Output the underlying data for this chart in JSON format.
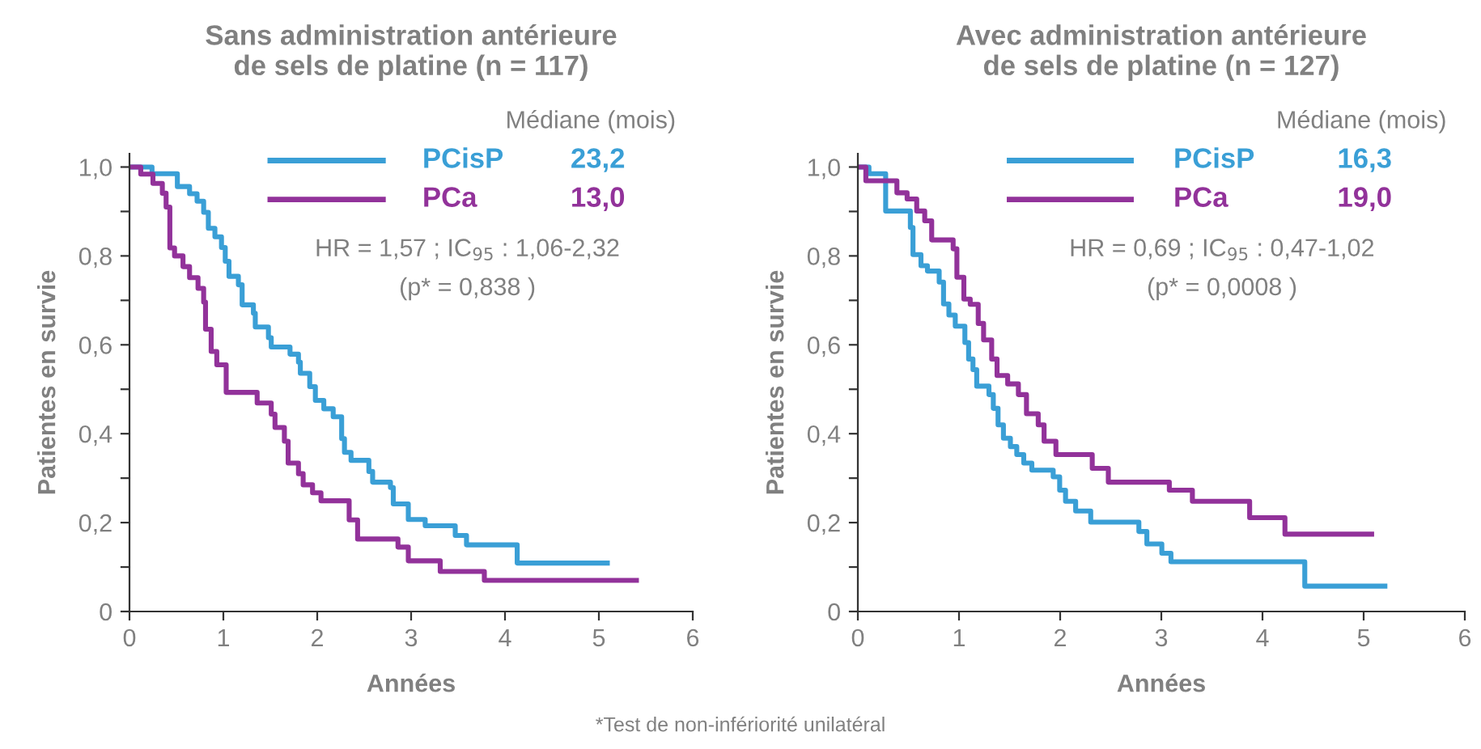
{
  "chart_data": [
    {
      "type": "step",
      "title": "Sans administration antérieure\nde sels de platine (n = 117)",
      "xlabel": "Années",
      "ylabel": "Patientes en survie",
      "legend_title": "Médiane (mois)",
      "legend": "top right",
      "grid": false,
      "xlim": [
        0,
        6
      ],
      "xticks": [
        0,
        1,
        2,
        3,
        4,
        5,
        6
      ],
      "ylim": [
        0,
        1.03
      ],
      "yticks": [
        {
          "value": 0,
          "label": "0"
        },
        {
          "value": 0.1,
          "label": null
        },
        {
          "value": 0.2,
          "label": "0,2"
        },
        {
          "value": 0.3,
          "label": null
        },
        {
          "value": 0.4,
          "label": "0,4"
        },
        {
          "value": 0.5,
          "label": null
        },
        {
          "value": 0.6,
          "label": "0,6"
        },
        {
          "value": 0.7,
          "label": null
        },
        {
          "value": 0.8,
          "label": "0,8"
        },
        {
          "value": 0.9,
          "label": null
        },
        {
          "value": 1.0,
          "label": "1,0"
        }
      ],
      "series": [
        {
          "name": "PCisP",
          "color": "#3a9fd6",
          "x": [
            0,
            0.24,
            0.51,
            0.64,
            0.72,
            0.79,
            0.84,
            0.91,
            0.98,
            1.02,
            1.06,
            1.16,
            1.2,
            1.32,
            1.34,
            1.48,
            1.51,
            1.71,
            1.8,
            1.82,
            1.92,
            1.98,
            2.07,
            2.17,
            2.26,
            2.29,
            2.36,
            2.55,
            2.59,
            2.78,
            2.81,
            2.97,
            3.15,
            3.47,
            3.59,
            4.13,
            5.09
          ],
          "values": [
            1.0,
            0.985,
            0.956,
            0.94,
            0.923,
            0.898,
            0.862,
            0.843,
            0.819,
            0.788,
            0.754,
            0.735,
            0.69,
            0.671,
            0.64,
            0.616,
            0.595,
            0.579,
            0.561,
            0.536,
            0.506,
            0.475,
            0.456,
            0.438,
            0.389,
            0.358,
            0.34,
            0.315,
            0.291,
            0.279,
            0.242,
            0.207,
            0.193,
            0.171,
            0.15,
            0.109,
            0.109
          ]
        },
        {
          "name": "PCa",
          "color": "#92329a",
          "x": [
            0,
            0.12,
            0.25,
            0.35,
            0.39,
            0.43,
            0.48,
            0.57,
            0.64,
            0.73,
            0.79,
            0.81,
            0.87,
            0.93,
            1.03,
            1.36,
            1.51,
            1.55,
            1.65,
            1.69,
            1.8,
            1.85,
            1.95,
            2.04,
            2.34,
            2.43,
            2.86,
            2.97,
            3.31,
            3.78,
            5.4
          ],
          "values": [
            1.0,
            0.984,
            0.963,
            0.941,
            0.91,
            0.818,
            0.8,
            0.776,
            0.751,
            0.727,
            0.696,
            0.635,
            0.585,
            0.555,
            0.493,
            0.469,
            0.444,
            0.414,
            0.383,
            0.334,
            0.31,
            0.285,
            0.267,
            0.249,
            0.206,
            0.163,
            0.145,
            0.114,
            0.09,
            0.07,
            0.07
          ]
        }
      ],
      "annotations": [
        "23,2",
        "13,0",
        "HR = 1,57 ; IC$_{95}$ : 1,06-2,32",
        "(p* = 0,838 )"
      ]
    },
    {
      "type": "step",
      "title": "Avec administration antérieure\nde sels de platine (n = 127)",
      "xlabel": "Années",
      "ylabel": "Patientes en survie",
      "legend_title": "Médiane (mois)",
      "legend": "top right",
      "grid": false,
      "xlim": [
        0,
        6
      ],
      "xticks": [
        0,
        1,
        2,
        3,
        4,
        5,
        6
      ],
      "ylim": [
        0,
        1.03
      ],
      "yticks": [
        {
          "value": 0,
          "label": "0"
        },
        {
          "value": 0.1,
          "label": null
        },
        {
          "value": 0.2,
          "label": "0,2"
        },
        {
          "value": 0.3,
          "label": null
        },
        {
          "value": 0.4,
          "label": "0,4"
        },
        {
          "value": 0.5,
          "label": null
        },
        {
          "value": 0.6,
          "label": "0,6"
        },
        {
          "value": 0.7,
          "label": null
        },
        {
          "value": 0.8,
          "label": "0,8"
        },
        {
          "value": 0.9,
          "label": null
        },
        {
          "value": 1.0,
          "label": "1,0"
        }
      ],
      "series": [
        {
          "name": "PCisP",
          "color": "#3a9fd6",
          "x": [
            0,
            0.11,
            0.275,
            0.519,
            0.545,
            0.624,
            0.688,
            0.804,
            0.847,
            0.9,
            0.963,
            1.058,
            1.095,
            1.138,
            1.175,
            1.296,
            1.339,
            1.386,
            1.439,
            1.508,
            1.571,
            1.64,
            1.72,
            1.931,
            1.995,
            2.053,
            2.153,
            2.302,
            2.778,
            2.857,
            3.005,
            3.095,
            4.418,
            5.21
          ],
          "values": [
            1.0,
            0.985,
            0.901,
            0.864,
            0.803,
            0.778,
            0.766,
            0.741,
            0.692,
            0.667,
            0.642,
            0.605,
            0.568,
            0.544,
            0.507,
            0.488,
            0.457,
            0.42,
            0.39,
            0.371,
            0.353,
            0.334,
            0.318,
            0.303,
            0.273,
            0.248,
            0.226,
            0.201,
            0.18,
            0.152,
            0.131,
            0.112,
            0.057,
            0.057
          ]
        },
        {
          "name": "PCa",
          "color": "#92329a",
          "x": [
            0,
            0.079,
            0.386,
            0.487,
            0.582,
            0.661,
            0.73,
            0.942,
            0.979,
            1.048,
            1.111,
            1.19,
            1.243,
            1.323,
            1.376,
            1.481,
            1.587,
            1.667,
            1.783,
            1.841,
            1.958,
            2.317,
            2.476,
            3.079,
            3.307,
            3.873,
            4.222,
            5.079
          ],
          "values": [
            1.0,
            0.969,
            0.942,
            0.928,
            0.901,
            0.879,
            0.836,
            0.816,
            0.752,
            0.703,
            0.691,
            0.648,
            0.611,
            0.568,
            0.531,
            0.512,
            0.488,
            0.445,
            0.42,
            0.383,
            0.353,
            0.322,
            0.291,
            0.273,
            0.248,
            0.211,
            0.174,
            0.174
          ]
        }
      ],
      "annotations": [
        "16,3",
        "19,0",
        "HR = 0,69 ; IC$_{95}$ : 0,47-1,02",
        "(p* = 0,0008 )",
        "*Test de non-infériorité unilatéral"
      ]
    }
  ]
}
